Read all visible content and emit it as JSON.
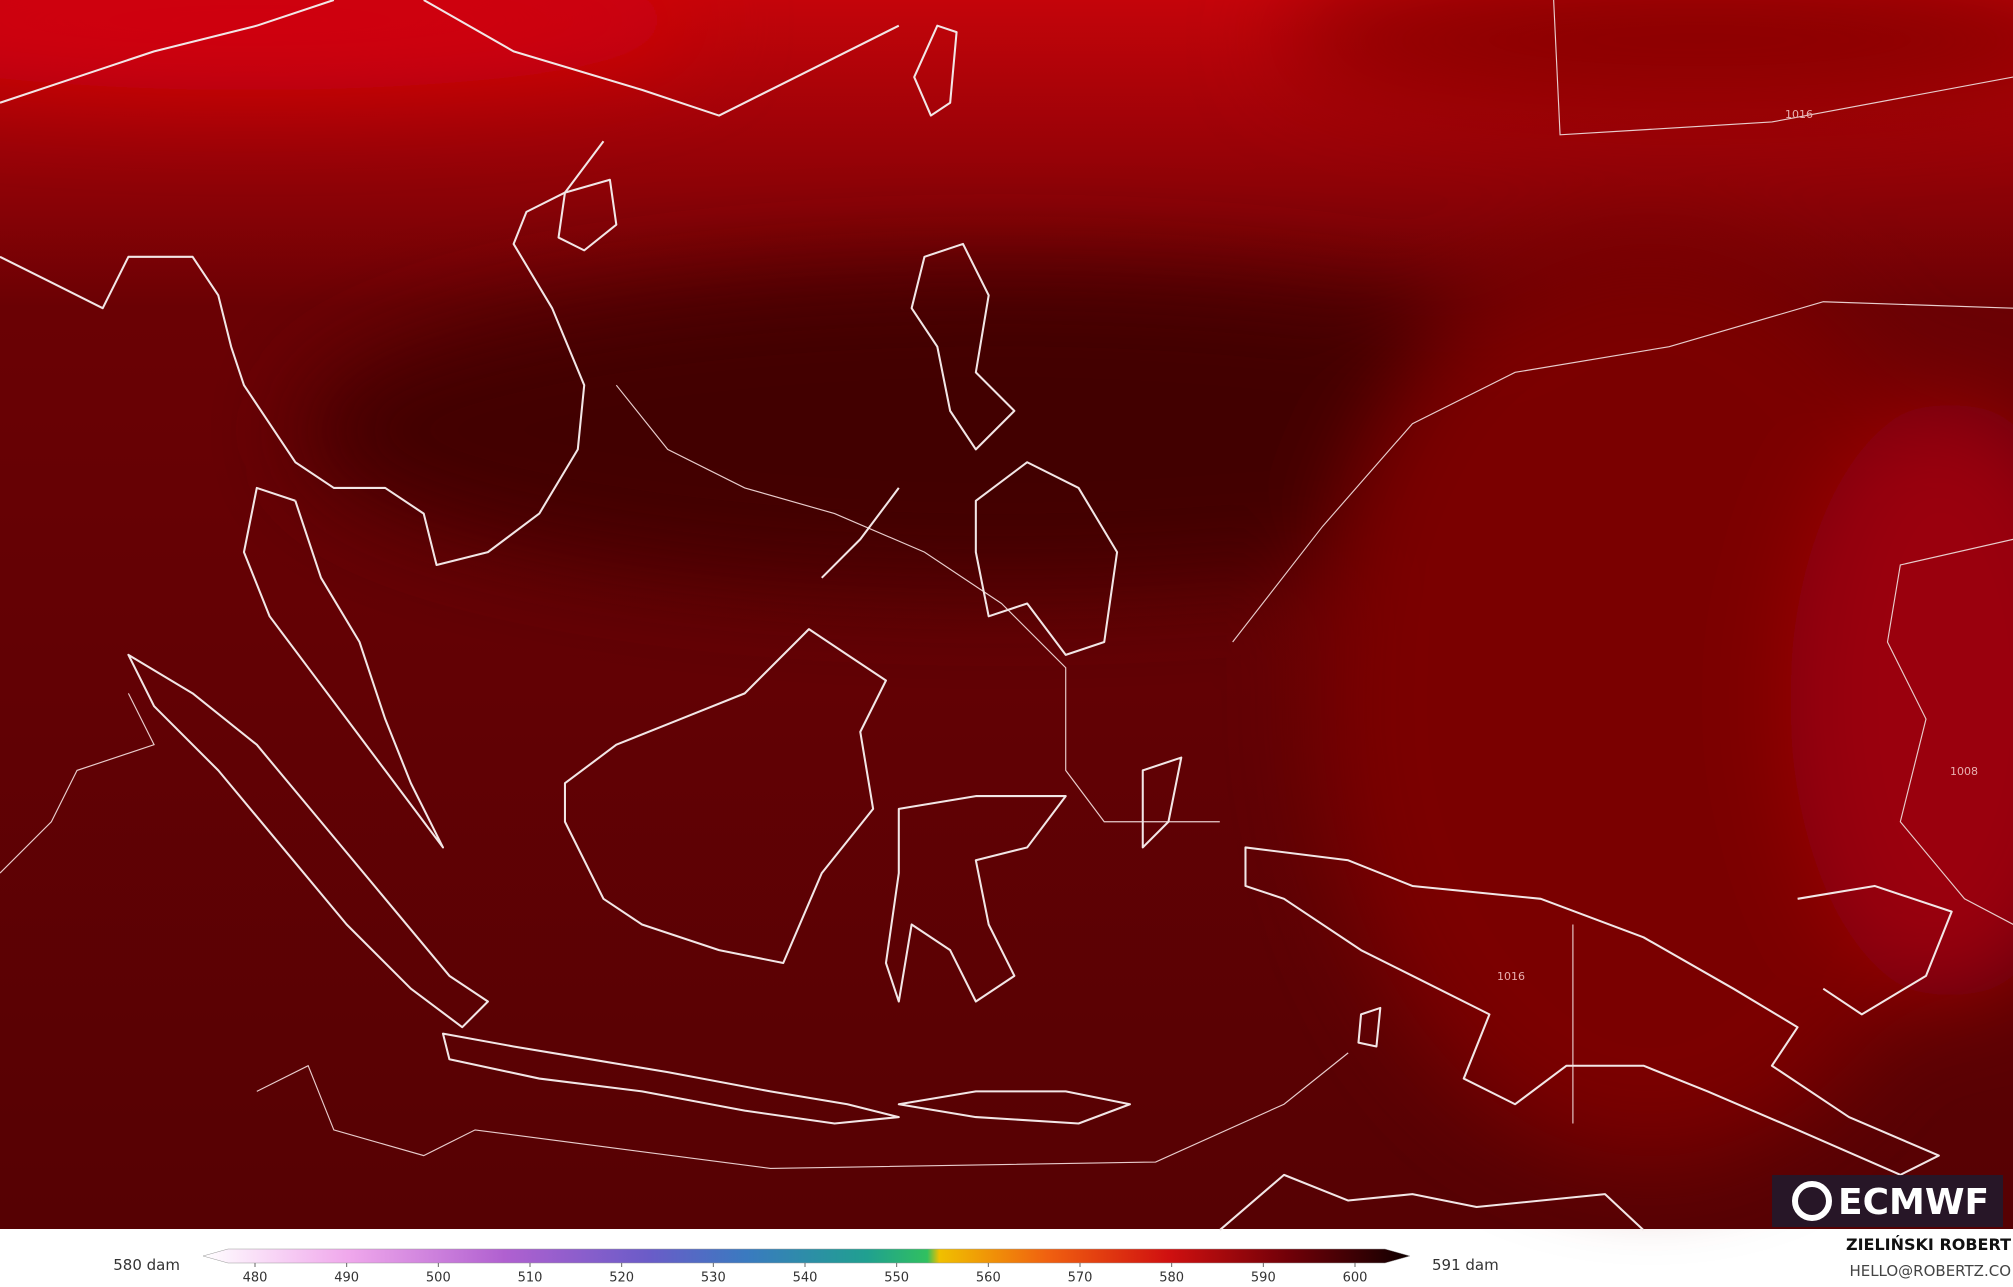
{
  "colorbar": {
    "min_label": "580 dam",
    "max_label": "591 dam",
    "ticks": [
      480,
      490,
      500,
      510,
      520,
      530,
      540,
      550,
      560,
      570,
      580,
      590,
      600
    ]
  },
  "contour_labels": [
    "1016",
    "1008",
    "1016"
  ],
  "logo": "ECMWF",
  "credit": {
    "name": "ZIELIŃSKI ROBERT",
    "contact": "HELLO@ROBERTZ.CO"
  }
}
